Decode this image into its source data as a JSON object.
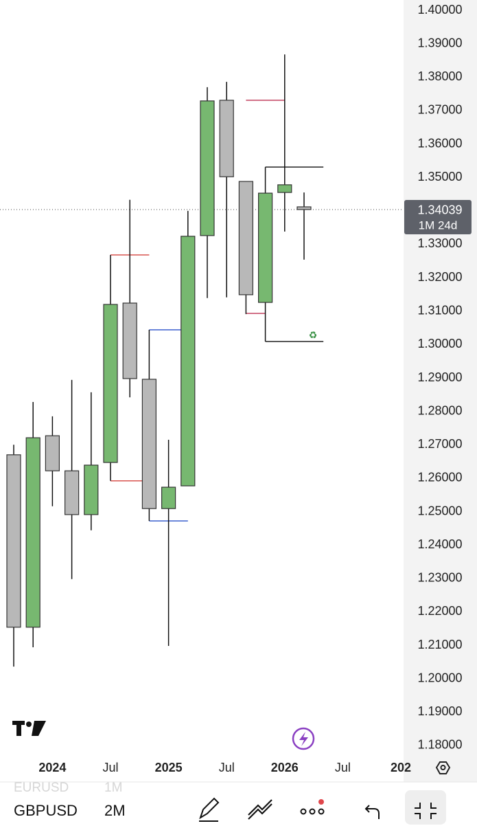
{
  "chart_data": {
    "type": "candlestick",
    "series": [
      {
        "name": "GBPUSD",
        "up_color": "#77b870",
        "down_color": "#b8b8b8",
        "open": [
          1.267,
          1.2154,
          1.2727,
          1.2622,
          1.2491,
          1.2647,
          1.3124,
          1.2896,
          1.2509,
          1.2577,
          1.3326,
          1.3731,
          1.3488,
          1.3126,
          1.3455,
          1.3412
        ],
        "high": [
          1.27,
          1.2828,
          1.2785,
          1.2894,
          1.2857,
          1.3268,
          1.3433,
          1.3044,
          1.2715,
          1.34,
          1.377,
          1.3786,
          1.3488,
          1.3531,
          1.3868,
          1.3455
        ],
        "low": [
          1.2036,
          1.2094,
          1.2516,
          1.2298,
          1.2444,
          1.2592,
          1.2842,
          1.2472,
          1.2098,
          1.2577,
          1.3139,
          1.3141,
          1.3091,
          1.3009,
          1.3338,
          1.3254
        ],
        "close": [
          1.2154,
          1.2721,
          1.2622,
          1.2491,
          1.2639,
          1.312,
          1.2898,
          1.2509,
          1.2573,
          1.3324,
          1.3729,
          1.3502,
          1.3149,
          1.3453,
          1.3478,
          1.34039
        ]
      }
    ],
    "levels": [
      {
        "value": 1.3268,
        "color": "#d9534f",
        "from": 5,
        "to": 7
      },
      {
        "value": 1.2592,
        "color": "#d9534f",
        "from": 5,
        "to": 6.7
      },
      {
        "value": 1.3044,
        "color": "#3a5fcd",
        "from": 7,
        "to": 8.7
      },
      {
        "value": 1.2472,
        "color": "#3a5fcd",
        "from": 7,
        "to": 9
      },
      {
        "value": 1.3731,
        "color": "#c2405f",
        "from": 12,
        "to": 14
      },
      {
        "value": 1.3093,
        "color": "#c2405f",
        "from": 12,
        "to": 13
      },
      {
        "value": 1.3531,
        "color": "#222222",
        "from": 13,
        "to": 16
      },
      {
        "value": 1.3009,
        "color": "#222222",
        "from": 13,
        "to": 16
      }
    ],
    "last_price": 1.34039,
    "last_price_label": "1.34039",
    "countdown": "1M 24d",
    "ylim": [
      1.1769,
      1.4031
    ],
    "yticks": [
      {
        "value": 1.4,
        "label": "1.40000"
      },
      {
        "value": 1.39,
        "label": "1.39000"
      },
      {
        "value": 1.38,
        "label": "1.38000"
      },
      {
        "value": 1.37,
        "label": "1.37000"
      },
      {
        "value": 1.36,
        "label": "1.36000"
      },
      {
        "value": 1.35,
        "label": "1.35000"
      },
      {
        "value": 1.34,
        "label": "1.34000"
      },
      {
        "value": 1.33,
        "label": "1.33000"
      },
      {
        "value": 1.32,
        "label": "1.32000"
      },
      {
        "value": 1.31,
        "label": "1.31000"
      },
      {
        "value": 1.3,
        "label": "1.30000"
      },
      {
        "value": 1.29,
        "label": "1.29000"
      },
      {
        "value": 1.28,
        "label": "1.28000"
      },
      {
        "value": 1.27,
        "label": "1.27000"
      },
      {
        "value": 1.26,
        "label": "1.26000"
      },
      {
        "value": 1.25,
        "label": "1.25000"
      },
      {
        "value": 1.24,
        "label": "1.24000"
      },
      {
        "value": 1.23,
        "label": "1.23000"
      },
      {
        "value": 1.22,
        "label": "1.22000"
      },
      {
        "value": 1.21,
        "label": "1.21000"
      },
      {
        "value": 1.2,
        "label": "1.20000"
      },
      {
        "value": 1.19,
        "label": "1.19000"
      },
      {
        "value": 1.18,
        "label": "1.18000"
      }
    ],
    "xticks": [
      {
        "value": 2,
        "label": "2024"
      },
      {
        "value": 5,
        "label": "Jul"
      },
      {
        "value": 8,
        "label": "2025"
      },
      {
        "value": 11,
        "label": "Jul"
      },
      {
        "value": 14,
        "label": "2026"
      },
      {
        "value": 17,
        "label": "Jul"
      },
      {
        "value": 20,
        "label": "202"
      }
    ],
    "yticks_hidden_price": 1.34
  },
  "toolbar": {
    "previous_symbol": "EURUSD",
    "previous_interval": "1M",
    "symbol": "GBPUSD",
    "interval": "2M"
  }
}
